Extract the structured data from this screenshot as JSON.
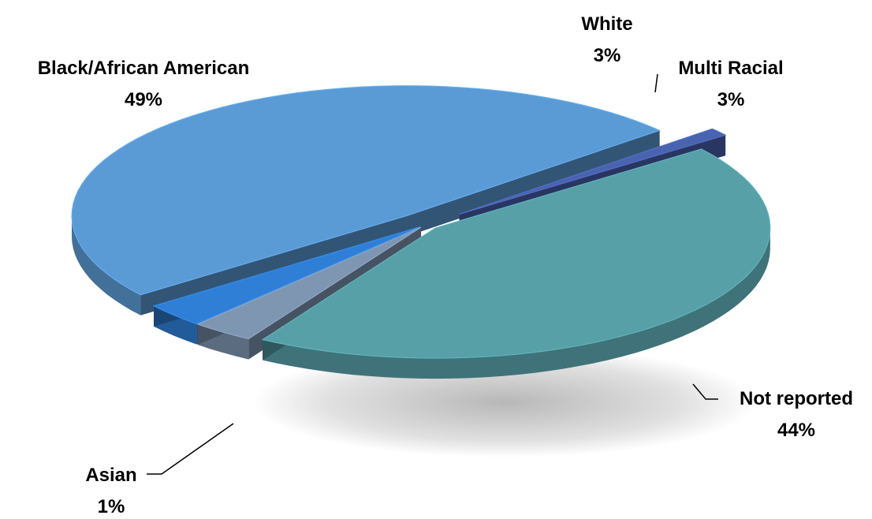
{
  "chart_data": {
    "type": "pie",
    "style": "3d-exploded",
    "slices": [
      {
        "name": "Black/African American",
        "label": "Black/African American",
        "percent_label": "49%",
        "value": 49,
        "color": "#5b9bd5"
      },
      {
        "name": "White",
        "label": "White",
        "percent_label": "3%",
        "value": 3,
        "color": "#2f7fd6"
      },
      {
        "name": "Multi Racial",
        "label": "Multi Racial",
        "percent_label": "3%",
        "value": 3,
        "color": "#7f96b2"
      },
      {
        "name": "Not reported",
        "label": "Not reported",
        "percent_label": "44%",
        "value": 44,
        "color": "#57a0a8"
      },
      {
        "name": "Asian",
        "label": "Asian",
        "percent_label": "1%",
        "value": 1,
        "color": "#4a63b0"
      }
    ],
    "legend": "none",
    "data_labels": "outside-with-leader-lines"
  }
}
